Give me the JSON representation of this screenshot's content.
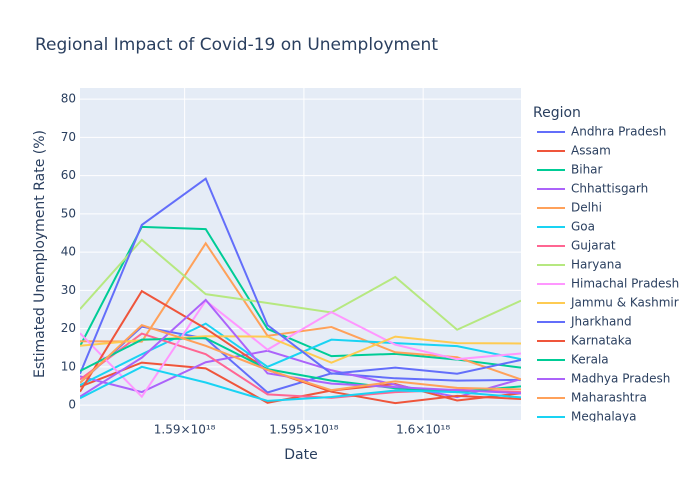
{
  "chart_data": {
    "type": "line",
    "title": "Regional Impact of Covid-19 on Unemployment",
    "x_label": "Date",
    "y_label": "Estimated Unemployment Rate (%)",
    "legend_title": "Region",
    "x": [
      1585612800000000000,
      1588204800000000000,
      1590883200000000000,
      1593475200000000000,
      1596153600000000000,
      1598832000000000000,
      1601424000000000000,
      1604102400000000000
    ],
    "xlim": [
      1585612800000000000,
      1604102400000000000
    ],
    "xticks": [
      {
        "value": 1590000000000000000,
        "label": "1.59×10¹⁸"
      },
      {
        "value": 1595000000000000000,
        "label": "1.595×10¹⁸"
      },
      {
        "value": 1600000000000000000,
        "label": "1.6×10¹⁸"
      }
    ],
    "ylim": [
      -3.9,
      82.9
    ],
    "yticks": [
      0,
      10,
      20,
      30,
      40,
      50,
      60,
      70,
      80
    ],
    "grid": true,
    "series": [
      {
        "name": "Andhra Pradesh",
        "color": "#636efa",
        "values": [
          5.8,
          20.5,
          17.4,
          3.3,
          8.3,
          7.0,
          6.4,
          6.6
        ]
      },
      {
        "name": "Assam",
        "color": "#EF553B",
        "values": [
          4.8,
          11.1,
          9.6,
          0.6,
          3.8,
          5.5,
          1.2,
          3.1
        ]
      },
      {
        "name": "Bihar",
        "color": "#00cc96",
        "values": [
          15.4,
          46.6,
          46.0,
          19.9,
          12.8,
          13.4,
          11.9,
          9.8
        ]
      },
      {
        "name": "Chhattisgarh",
        "color": "#ab63fa",
        "values": [
          7.5,
          3.4,
          11.2,
          14.2,
          9.1,
          5.3,
          2.1,
          6.8
        ]
      },
      {
        "name": "Delhi",
        "color": "#FFA15A",
        "values": [
          16.7,
          16.6,
          42.3,
          18.1,
          20.4,
          13.8,
          12.5,
          6.7
        ]
      },
      {
        "name": "Goa",
        "color": "#19d3f3",
        "values": [
          5.2,
          13.3,
          21.3,
          10.0,
          17.1,
          16.2,
          15.4,
          12.0
        ]
      },
      {
        "name": "Gujarat",
        "color": "#FF6692",
        "values": [
          6.7,
          18.7,
          13.3,
          2.8,
          1.9,
          3.4,
          4.0,
          3.4
        ]
      },
      {
        "name": "Haryana",
        "color": "#B6E880",
        "values": [
          25.1,
          43.2,
          29.0,
          26.7,
          24.2,
          33.5,
          19.7,
          27.3
        ]
      },
      {
        "name": "Himachal Pradesh",
        "color": "#FF97FF",
        "values": [
          18.8,
          2.2,
          27.3,
          14.5,
          24.3,
          15.8,
          12.0,
          13.5
        ]
      },
      {
        "name": "Jammu & Kashmir",
        "color": "#FECB52",
        "values": [
          15.5,
          17.0,
          18.0,
          17.9,
          11.1,
          17.9,
          16.2,
          16.1
        ]
      },
      {
        "name": "Jharkhand",
        "color": "#636efa",
        "values": [
          8.2,
          47.1,
          59.2,
          20.9,
          8.2,
          9.8,
          8.2,
          11.8
        ]
      },
      {
        "name": "Karnataka",
        "color": "#EF553B",
        "values": [
          3.5,
          29.8,
          20.0,
          9.2,
          3.5,
          0.5,
          2.4,
          1.6
        ]
      },
      {
        "name": "Kerala",
        "color": "#00cc96",
        "values": [
          8.9,
          17.1,
          17.5,
          9.4,
          6.4,
          4.4,
          3.4,
          4.9
        ]
      },
      {
        "name": "Madhya Pradesh",
        "color": "#ab63fa",
        "values": [
          2.2,
          12.4,
          27.5,
          8.3,
          5.6,
          4.7,
          3.9,
          3.1
        ]
      },
      {
        "name": "Maharashtra",
        "color": "#FFA15A",
        "values": [
          5.8,
          20.9,
          15.5,
          9.2,
          3.9,
          6.2,
          4.5,
          4.1
        ]
      },
      {
        "name": "Meghalaya",
        "color": "#19d3f3",
        "values": [
          1.8,
          10.0,
          5.9,
          1.1,
          2.1,
          3.8,
          3.4,
          2.0
        ]
      }
    ]
  }
}
